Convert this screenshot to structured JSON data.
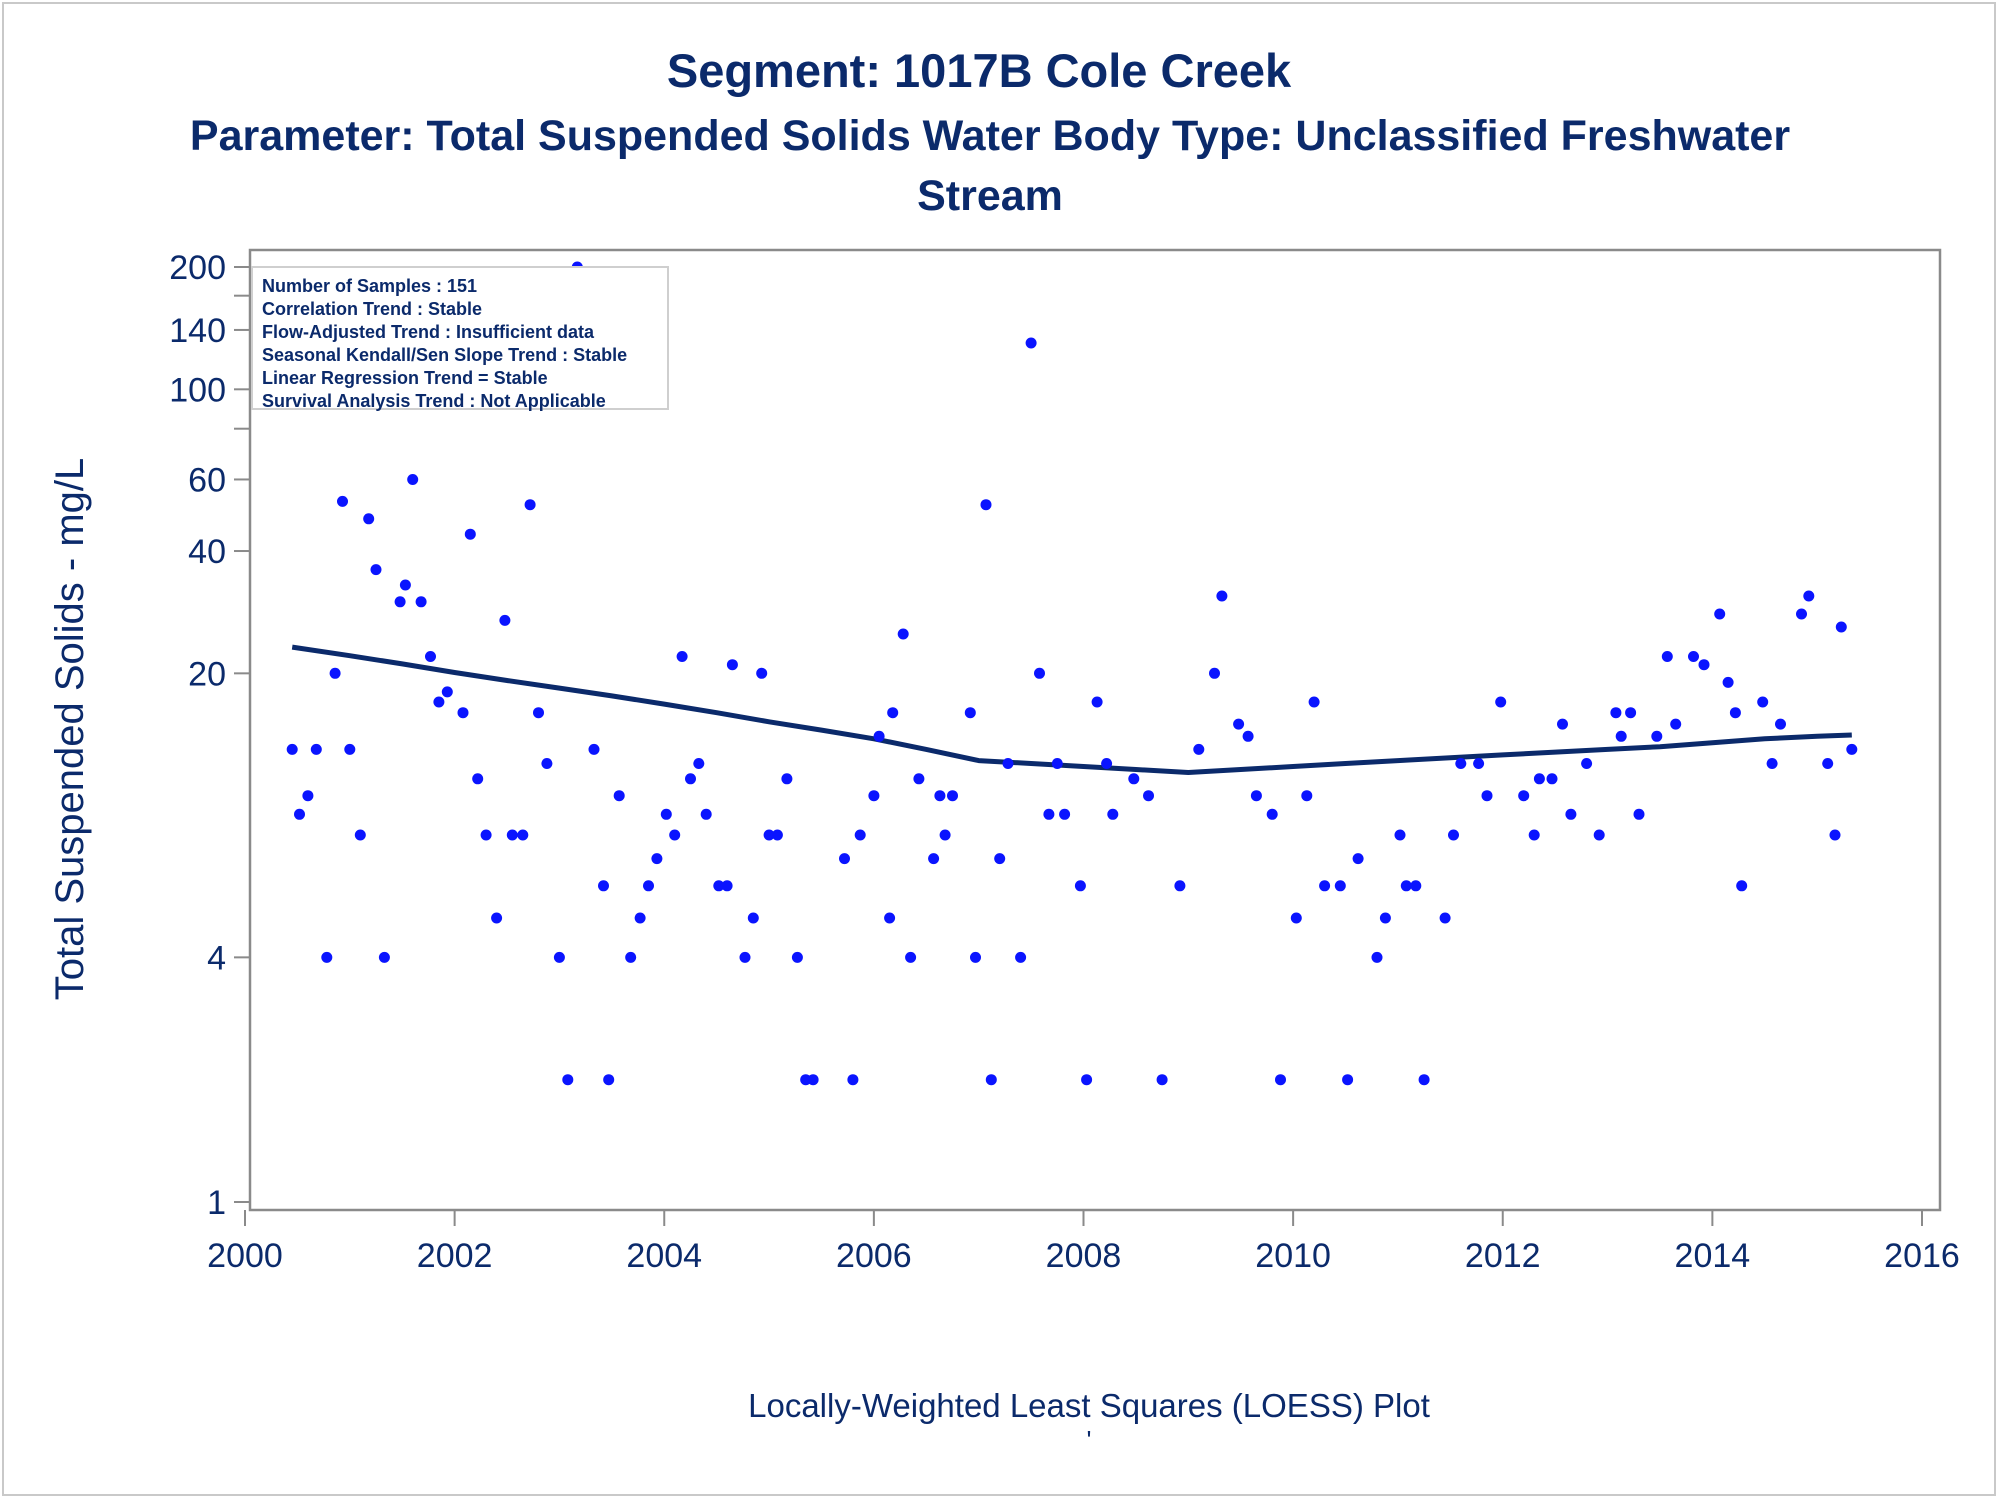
{
  "chart_data": {
    "type": "scatter",
    "title": "Segment: 1017B  Cole Creek",
    "subtitle_lines": [
      "Parameter: Total Suspended Solids   Water Body Type: Unclassified Freshwater",
      "Stream"
    ],
    "ylabel": "Total Suspended Solids - mg/L",
    "xlabel": "Locally-Weighted Least Squares (LOESS) Plot",
    "footnote": "'",
    "y_scale": "log",
    "xlim": [
      2000,
      2016
    ],
    "ylim": [
      1,
      230
    ],
    "x_ticks": [
      {
        "value": 2000,
        "label": "2000"
      },
      {
        "value": 2002,
        "label": "2002"
      },
      {
        "value": 2004,
        "label": "2004"
      },
      {
        "value": 2006,
        "label": "2006"
      },
      {
        "value": 2008,
        "label": "2008"
      },
      {
        "value": 2010,
        "label": "2010"
      },
      {
        "value": 2012,
        "label": "2012"
      },
      {
        "value": 2014,
        "label": "2014"
      },
      {
        "value": 2016,
        "label": "2016"
      }
    ],
    "y_ticks": [
      {
        "value": 1,
        "label": "1"
      },
      {
        "value": 4,
        "label": "4"
      },
      {
        "value": 20,
        "label": "20"
      },
      {
        "value": 40,
        "label": "40"
      },
      {
        "value": 60,
        "label": "60"
      },
      {
        "value": 80,
        "label": ""
      },
      {
        "value": 100,
        "label": "100"
      },
      {
        "value": 140,
        "label": "140"
      },
      {
        "value": 170,
        "label": ""
      },
      {
        "value": 200,
        "label": "200"
      }
    ],
    "stats_box": [
      "Number of Samples : 151",
      "Correlation Trend : Stable",
      "Flow-Adjusted Trend : Insufficient data",
      "Seasonal Kendall/Sen Slope Trend : Stable",
      "Linear Regression Trend = Stable",
      "Survival Analysis Trend : Not Applicable"
    ],
    "series": [
      {
        "type": "scatter",
        "color": "#0a14ff",
        "points": [
          [
            2000.45,
            13
          ],
          [
            2000.52,
            9
          ],
          [
            2000.6,
            10
          ],
          [
            2000.68,
            13
          ],
          [
            2000.78,
            4
          ],
          [
            2000.86,
            20
          ],
          [
            2000.93,
            53
          ],
          [
            2001.0,
            13
          ],
          [
            2001.1,
            8
          ],
          [
            2001.18,
            48
          ],
          [
            2001.25,
            36
          ],
          [
            2001.33,
            4
          ],
          [
            2001.48,
            30
          ],
          [
            2001.53,
            33
          ],
          [
            2001.6,
            60
          ],
          [
            2001.68,
            30
          ],
          [
            2001.77,
            22
          ],
          [
            2001.85,
            17
          ],
          [
            2001.93,
            18
          ],
          [
            2002.08,
            16
          ],
          [
            2002.15,
            44
          ],
          [
            2002.22,
            11
          ],
          [
            2002.3,
            8
          ],
          [
            2002.4,
            5
          ],
          [
            2002.48,
            27
          ],
          [
            2002.55,
            8
          ],
          [
            2002.65,
            8
          ],
          [
            2002.72,
            52
          ],
          [
            2002.8,
            16
          ],
          [
            2002.88,
            12
          ],
          [
            2003.0,
            4
          ],
          [
            2003.08,
            2
          ],
          [
            2003.17,
            200
          ],
          [
            2003.33,
            13
          ],
          [
            2003.42,
            6
          ],
          [
            2003.47,
            2
          ],
          [
            2003.57,
            10
          ],
          [
            2003.68,
            4
          ],
          [
            2003.77,
            5
          ],
          [
            2003.85,
            6
          ],
          [
            2003.93,
            7
          ],
          [
            2004.02,
            9
          ],
          [
            2004.1,
            8
          ],
          [
            2004.17,
            22
          ],
          [
            2004.25,
            11
          ],
          [
            2004.33,
            12
          ],
          [
            2004.4,
            9
          ],
          [
            2004.52,
            6
          ],
          [
            2004.6,
            6
          ],
          [
            2004.65,
            21
          ],
          [
            2004.77,
            4
          ],
          [
            2004.85,
            5
          ],
          [
            2004.93,
            20
          ],
          [
            2005.0,
            8
          ],
          [
            2005.08,
            8
          ],
          [
            2005.17,
            11
          ],
          [
            2005.27,
            4
          ],
          [
            2005.35,
            2
          ],
          [
            2005.42,
            2
          ],
          [
            2005.72,
            7
          ],
          [
            2005.8,
            2
          ],
          [
            2005.87,
            8
          ],
          [
            2006.0,
            10
          ],
          [
            2006.05,
            14
          ],
          [
            2006.15,
            5
          ],
          [
            2006.18,
            16
          ],
          [
            2006.28,
            25
          ],
          [
            2006.35,
            4
          ],
          [
            2006.43,
            11
          ],
          [
            2006.57,
            7
          ],
          [
            2006.63,
            10
          ],
          [
            2006.68,
            8
          ],
          [
            2006.75,
            10
          ],
          [
            2006.92,
            16
          ],
          [
            2006.97,
            4
          ],
          [
            2007.07,
            52
          ],
          [
            2007.12,
            2
          ],
          [
            2007.2,
            7
          ],
          [
            2007.28,
            12
          ],
          [
            2007.4,
            4
          ],
          [
            2007.5,
            130
          ],
          [
            2007.58,
            20
          ],
          [
            2007.67,
            9
          ],
          [
            2007.75,
            12
          ],
          [
            2007.82,
            9
          ],
          [
            2007.97,
            6
          ],
          [
            2008.03,
            2
          ],
          [
            2008.13,
            17
          ],
          [
            2008.22,
            12
          ],
          [
            2008.28,
            9
          ],
          [
            2008.48,
            11
          ],
          [
            2008.62,
            10
          ],
          [
            2008.75,
            2
          ],
          [
            2008.92,
            6
          ],
          [
            2009.1,
            13
          ],
          [
            2009.25,
            20
          ],
          [
            2009.32,
            31
          ],
          [
            2009.48,
            15
          ],
          [
            2009.57,
            14
          ],
          [
            2009.65,
            10
          ],
          [
            2009.8,
            9
          ],
          [
            2009.88,
            2
          ],
          [
            2010.03,
            5
          ],
          [
            2010.13,
            10
          ],
          [
            2010.2,
            17
          ],
          [
            2010.3,
            6
          ],
          [
            2010.45,
            6
          ],
          [
            2010.52,
            2
          ],
          [
            2010.62,
            7
          ],
          [
            2010.8,
            4
          ],
          [
            2010.88,
            5
          ],
          [
            2011.02,
            8
          ],
          [
            2011.08,
            6
          ],
          [
            2011.17,
            6
          ],
          [
            2011.25,
            2
          ],
          [
            2011.45,
            5
          ],
          [
            2011.53,
            8
          ],
          [
            2011.6,
            12
          ],
          [
            2011.77,
            12
          ],
          [
            2011.85,
            10
          ],
          [
            2011.98,
            17
          ],
          [
            2012.2,
            10
          ],
          [
            2012.3,
            8
          ],
          [
            2012.35,
            11
          ],
          [
            2012.47,
            11
          ],
          [
            2012.57,
            15
          ],
          [
            2012.65,
            9
          ],
          [
            2012.8,
            12
          ],
          [
            2012.92,
            8
          ],
          [
            2013.08,
            16
          ],
          [
            2013.13,
            14
          ],
          [
            2013.22,
            16
          ],
          [
            2013.3,
            9
          ],
          [
            2013.47,
            14
          ],
          [
            2013.57,
            22
          ],
          [
            2013.65,
            15
          ],
          [
            2013.82,
            22
          ],
          [
            2013.92,
            21
          ],
          [
            2014.07,
            28
          ],
          [
            2014.15,
            19
          ],
          [
            2014.22,
            16
          ],
          [
            2014.28,
            6
          ],
          [
            2014.48,
            17
          ],
          [
            2014.57,
            12
          ],
          [
            2014.65,
            15
          ],
          [
            2014.85,
            28
          ],
          [
            2014.92,
            31
          ],
          [
            2015.1,
            12
          ],
          [
            2015.17,
            8
          ],
          [
            2015.23,
            26
          ],
          [
            2015.33,
            13
          ]
        ]
      },
      {
        "type": "line",
        "color": "#0b2a6b",
        "points": [
          [
            2000.45,
            23.2
          ],
          [
            2001.0,
            22.1
          ],
          [
            2001.5,
            21.1
          ],
          [
            2002.0,
            20.1
          ],
          [
            2002.5,
            19.2
          ],
          [
            2003.0,
            18.4
          ],
          [
            2003.5,
            17.6
          ],
          [
            2004.0,
            16.8
          ],
          [
            2004.5,
            16.0
          ],
          [
            2005.0,
            15.2
          ],
          [
            2005.5,
            14.5
          ],
          [
            2006.0,
            13.8
          ],
          [
            2006.5,
            13.0
          ],
          [
            2007.0,
            12.2
          ],
          [
            2007.5,
            12.0
          ],
          [
            2008.0,
            11.8
          ],
          [
            2008.5,
            11.6
          ],
          [
            2009.0,
            11.4
          ],
          [
            2009.5,
            11.6
          ],
          [
            2010.0,
            11.8
          ],
          [
            2010.5,
            12.0
          ],
          [
            2011.0,
            12.2
          ],
          [
            2011.5,
            12.4
          ],
          [
            2012.0,
            12.6
          ],
          [
            2012.5,
            12.8
          ],
          [
            2013.0,
            13.0
          ],
          [
            2013.5,
            13.2
          ],
          [
            2014.0,
            13.5
          ],
          [
            2014.5,
            13.8
          ],
          [
            2015.0,
            14.0
          ],
          [
            2015.33,
            14.1
          ]
        ]
      }
    ]
  },
  "colors": {
    "title": "#0b2a6b",
    "axis": "#8a8a8a",
    "text": "#0b2a6b",
    "points": "#0a14ff",
    "loess": "#0b2a6b"
  }
}
